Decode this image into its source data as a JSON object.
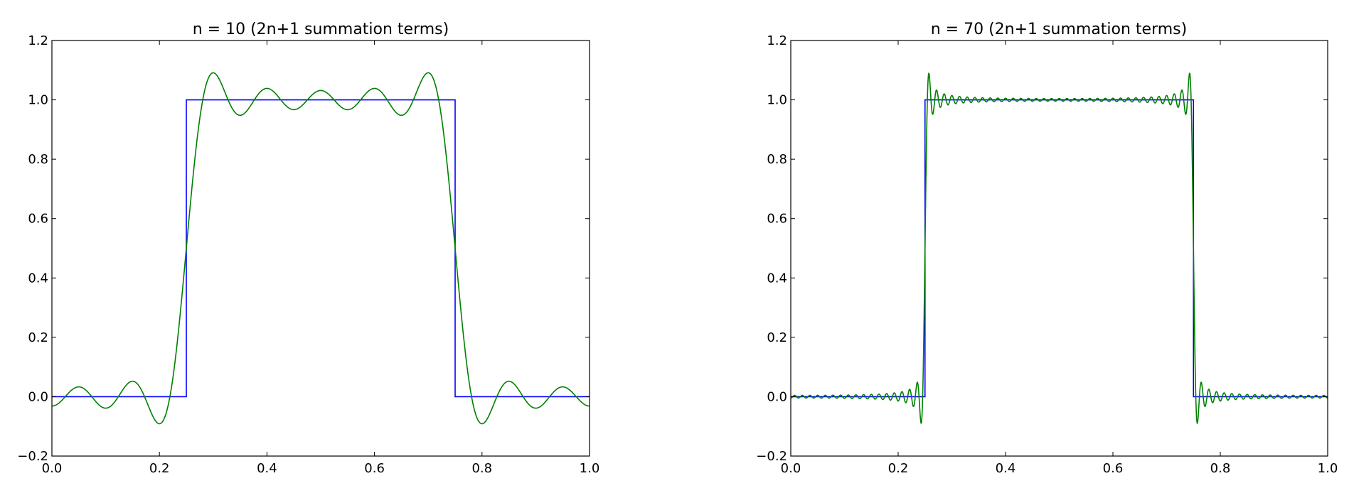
{
  "chart_data": [
    {
      "type": "line",
      "title": "n = 10 (2n+1 summation terms)",
      "n": 10,
      "xlim": [
        0.0,
        1.0
      ],
      "ylim": [
        -0.2,
        1.2
      ],
      "xticks": [
        "0.0",
        "0.2",
        "0.4",
        "0.6",
        "0.8",
        "1.0"
      ],
      "yticks": [
        "−0.2",
        "0.0",
        "0.2",
        "0.4",
        "0.6",
        "0.8",
        "1.0",
        "1.2"
      ],
      "grid": false,
      "series": [
        {
          "kind": "square-wave",
          "color": "#0000ff",
          "x": [
            0.0,
            0.25,
            0.25,
            0.75,
            0.75,
            1.0
          ],
          "y": [
            0,
            0,
            1,
            1,
            0,
            0
          ]
        },
        {
          "kind": "fourier-partial-sum",
          "color": "#008000",
          "terms": 21
        }
      ]
    },
    {
      "type": "line",
      "title": "n = 70 (2n+1 summation terms)",
      "n": 70,
      "xlim": [
        0.0,
        1.0
      ],
      "ylim": [
        -0.2,
        1.2
      ],
      "xticks": [
        "0.0",
        "0.2",
        "0.4",
        "0.6",
        "0.8",
        "1.0"
      ],
      "yticks": [
        "−0.2",
        "0.0",
        "0.2",
        "0.4",
        "0.6",
        "0.8",
        "1.0",
        "1.2"
      ],
      "grid": false,
      "series": [
        {
          "kind": "square-wave",
          "color": "#0000ff",
          "x": [
            0.0,
            0.25,
            0.25,
            0.75,
            0.75,
            1.0
          ],
          "y": [
            0,
            0,
            1,
            1,
            0,
            0
          ]
        },
        {
          "kind": "fourier-partial-sum",
          "color": "#008000",
          "terms": 141
        }
      ]
    }
  ]
}
